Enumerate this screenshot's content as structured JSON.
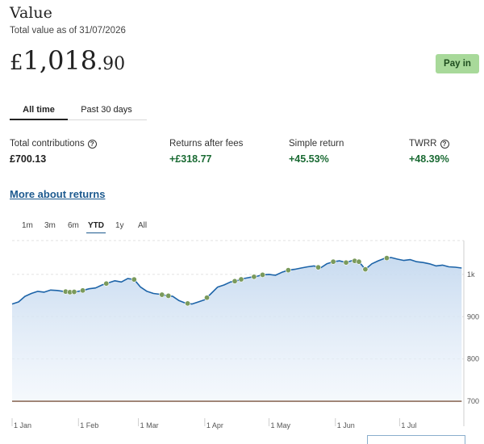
{
  "header": {
    "title": "Value",
    "subtitle": "Total value as of 31/07/2026",
    "value_currency": "£",
    "value_main": "1,018",
    "value_decimal": ".90",
    "pay_in_label": "Pay in"
  },
  "tabs": [
    {
      "label": "All time",
      "active": true
    },
    {
      "label": "Past 30 days",
      "active": false
    }
  ],
  "stats": [
    {
      "label": "Total contributions",
      "value": "£700.13",
      "has_help": true,
      "color": "#1f1f1f"
    },
    {
      "label": "Returns after fees",
      "value": "+£318.77",
      "has_help": false,
      "color": "#1b6b34"
    },
    {
      "label": "Simple return",
      "value": "+45.53%",
      "has_help": false,
      "color": "#1b6b34"
    },
    {
      "label": "TWRR",
      "value": "+48.39%",
      "has_help": true,
      "color": "#1b6b34"
    }
  ],
  "help_glyph": "?",
  "more_link": "More about returns",
  "ranges": [
    {
      "label": "1m",
      "active": false
    },
    {
      "label": "3m",
      "active": false
    },
    {
      "label": "6m",
      "active": false
    },
    {
      "label": "YTD",
      "active": true
    },
    {
      "label": "1y",
      "active": false
    },
    {
      "label": "All",
      "active": false
    }
  ],
  "colors": {
    "value_line": "#1d64a8",
    "contribution_line": "#9c8070",
    "marker": "#7a9a5c",
    "positive": "#1b6b34",
    "accent": "#a8d99a"
  },
  "chart_data": {
    "type": "line",
    "y_ticks": [
      "1k",
      "900",
      "800",
      "700"
    ],
    "y_tick_values": [
      1000,
      900,
      800,
      700
    ],
    "ylim": [
      660,
      1080
    ],
    "x_ticks": [
      "1 Jan",
      "1 Feb",
      "1 Mar",
      "1 Apr",
      "1 May",
      "1 Jun",
      "1 Jul"
    ],
    "x_tick_days": [
      0,
      31,
      59,
      90,
      120,
      151,
      181
    ],
    "xlim_days": [
      0,
      211
    ],
    "grid": true,
    "legend": "none",
    "series": [
      {
        "role": "value",
        "x_days": [
          0,
          3,
          6,
          9,
          12,
          15,
          18,
          21,
          24,
          27,
          30,
          33,
          36,
          39,
          42,
          45,
          48,
          51,
          54,
          57,
          60,
          63,
          66,
          69,
          72,
          75,
          78,
          81,
          84,
          87,
          90,
          93,
          96,
          99,
          102,
          105,
          108,
          111,
          114,
          117,
          120,
          123,
          126,
          129,
          132,
          135,
          138,
          141,
          144,
          147,
          150,
          153,
          156,
          159,
          162,
          165,
          168,
          171,
          174,
          177,
          180,
          183,
          186,
          189,
          192,
          195,
          198,
          201,
          204,
          207,
          210
        ],
        "values": [
          930,
          935,
          948,
          955,
          960,
          958,
          963,
          962,
          960,
          958,
          959,
          962,
          966,
          968,
          975,
          980,
          985,
          982,
          990,
          988,
          970,
          960,
          955,
          953,
          950,
          948,
          938,
          932,
          930,
          935,
          940,
          955,
          970,
          975,
          982,
          985,
          990,
          993,
          995,
          999,
          1000,
          998,
          1005,
          1010,
          1012,
          1015,
          1018,
          1020,
          1015,
          1025,
          1030,
          1032,
          1028,
          1033,
          1030,
          1012,
          1025,
          1032,
          1038,
          1040,
          1036,
          1033,
          1035,
          1030,
          1028,
          1025,
          1020,
          1022,
          1018,
          1017,
          1015
        ]
      },
      {
        "role": "contributions",
        "x_days": [
          0,
          210
        ],
        "values": [
          700,
          700
        ]
      }
    ],
    "markers_days": [
      25,
      27,
      29,
      33,
      44,
      57,
      70,
      73,
      82,
      91,
      104,
      107,
      113,
      117,
      129,
      143,
      150,
      156,
      160,
      162,
      165,
      175
    ]
  }
}
